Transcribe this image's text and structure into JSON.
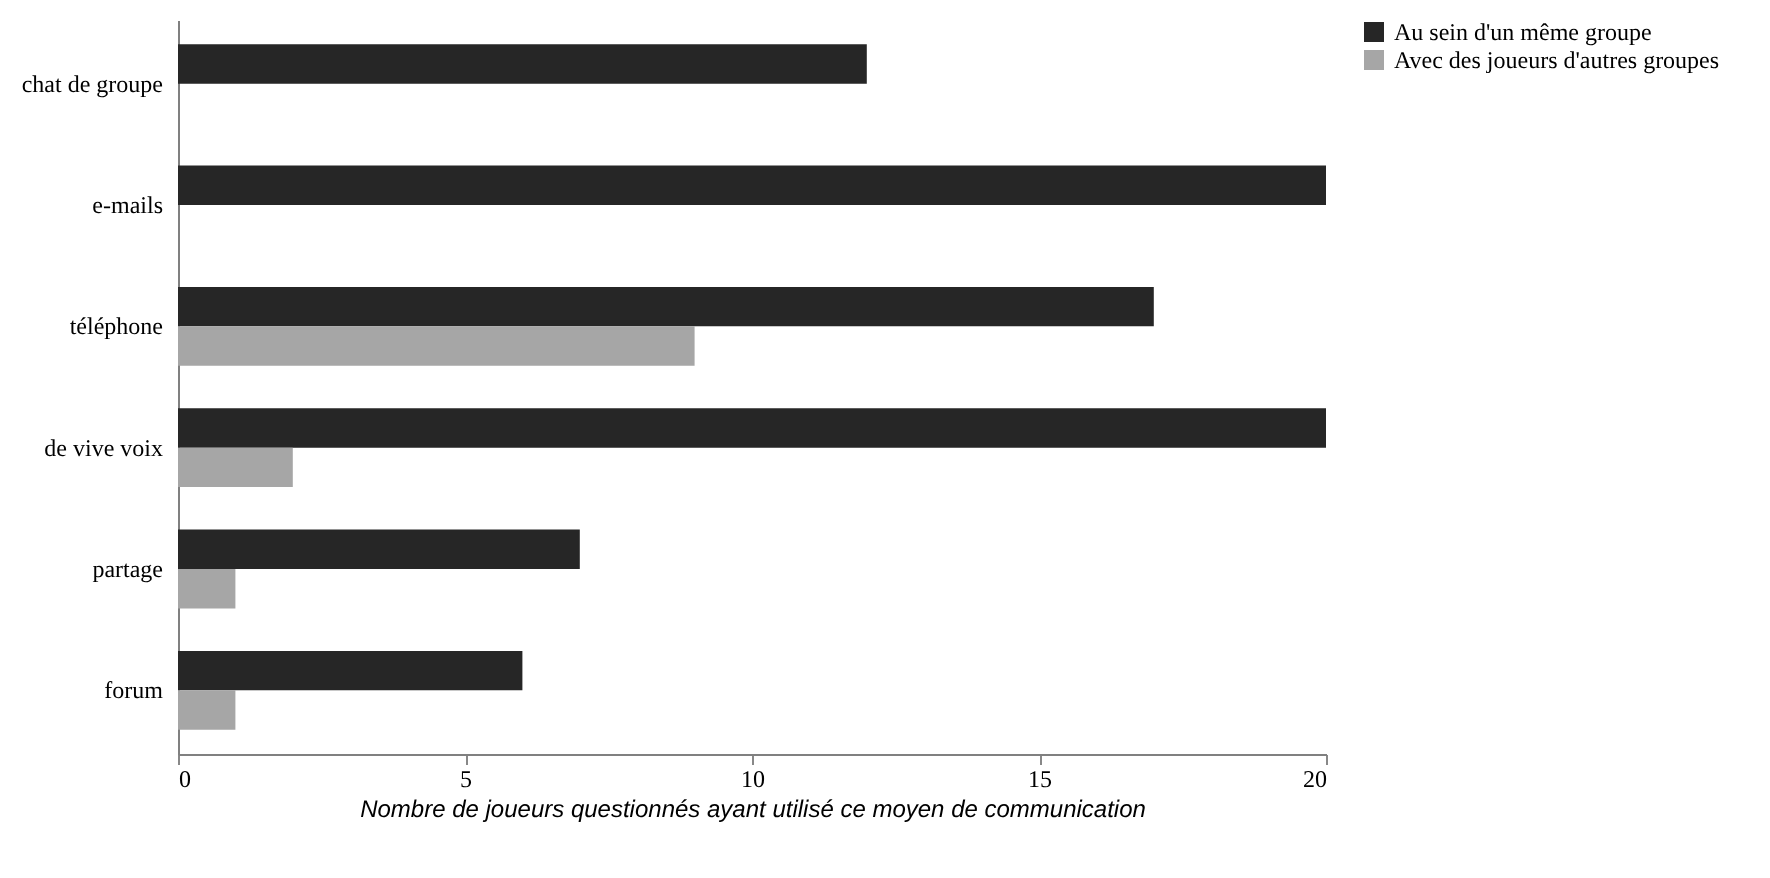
{
  "chart_data": {
    "type": "bar",
    "orientation": "horizontal",
    "xlabel": "Nombre de joueurs questionnés ayant utilisé ce moyen de communication",
    "categories": [
      "chat de groupe",
      "e-mails",
      "téléphone",
      "de vive voix",
      "partage",
      "forum"
    ],
    "series": [
      {
        "name": "Au sein d'un même groupe",
        "color": "#262626",
        "values": [
          12,
          20,
          17,
          20,
          7,
          6
        ]
      },
      {
        "name": "Avec des joueurs d'autres groupes",
        "color": "#a6a6a6",
        "values": [
          null,
          null,
          9,
          2,
          1,
          1
        ]
      }
    ],
    "xlim": [
      0,
      20
    ],
    "xticks": [
      0,
      5,
      10,
      15,
      20
    ],
    "grid": false,
    "legend": "top right"
  }
}
